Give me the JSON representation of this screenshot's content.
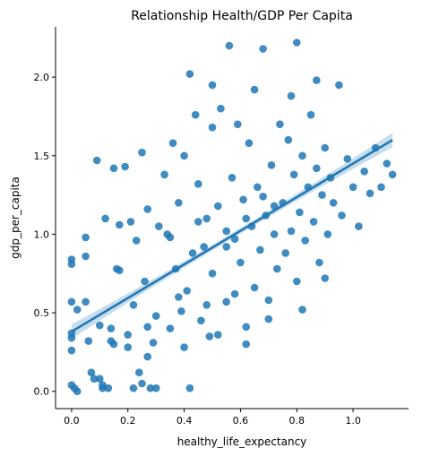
{
  "chart_data": {
    "type": "scatter",
    "title": "Relationship Health/GDP Per Capita",
    "xlabel": "healthy_life_expectancy",
    "ylabel": "gdp_per_capita",
    "xlim": [
      -0.057,
      1.197
    ],
    "ylim": [
      -0.11,
      2.32
    ],
    "x_ticks": [
      0.0,
      0.2,
      0.4,
      0.6,
      0.8,
      1.0
    ],
    "x_tick_labels": [
      "0.0",
      "0.2",
      "0.4",
      "0.6",
      "0.8",
      "1.0"
    ],
    "y_ticks": [
      0.0,
      0.5,
      1.0,
      1.5,
      2.0
    ],
    "y_tick_labels": [
      "0.0",
      "0.5",
      "1.0",
      "1.5",
      "2.0"
    ],
    "grid": false,
    "point_color": "#1f77b4",
    "regression": {
      "type": "linear",
      "intercept": 0.38,
      "slope": 1.07,
      "x_range": [
        0.0,
        1.14
      ],
      "ci_color": "#1f77b4"
    },
    "points": [
      [
        0.0,
        0.84
      ],
      [
        0.0,
        0.81
      ],
      [
        0.0,
        0.57
      ],
      [
        0.0,
        0.37
      ],
      [
        0.0,
        0.34
      ],
      [
        0.0,
        0.26
      ],
      [
        0.0,
        0.04
      ],
      [
        0.01,
        0.02
      ],
      [
        0.02,
        0.0
      ],
      [
        0.02,
        0.52
      ],
      [
        0.05,
        0.98
      ],
      [
        0.05,
        0.86
      ],
      [
        0.05,
        0.57
      ],
      [
        0.06,
        0.32
      ],
      [
        0.07,
        0.12
      ],
      [
        0.08,
        0.08
      ],
      [
        0.09,
        1.47
      ],
      [
        0.1,
        0.42
      ],
      [
        0.1,
        0.08
      ],
      [
        0.11,
        0.04
      ],
      [
        0.11,
        0.02
      ],
      [
        0.12,
        1.1
      ],
      [
        0.13,
        0.02
      ],
      [
        0.14,
        0.4
      ],
      [
        0.15,
        1.42
      ],
      [
        0.15,
        0.3
      ],
      [
        0.16,
        0.78
      ],
      [
        0.17,
        0.77
      ],
      [
        0.17,
        1.06
      ],
      [
        0.19,
        1.43
      ],
      [
        0.2,
        0.28
      ],
      [
        0.21,
        1.08
      ],
      [
        0.22,
        0.55
      ],
      [
        0.22,
        0.02
      ],
      [
        0.23,
        0.96
      ],
      [
        0.24,
        0.12
      ],
      [
        0.25,
        1.52
      ],
      [
        0.25,
        0.05
      ],
      [
        0.26,
        0.7
      ],
      [
        0.27,
        0.41
      ],
      [
        0.27,
        0.22
      ],
      [
        0.28,
        0.02
      ],
      [
        0.29,
        0.31
      ],
      [
        0.3,
        0.02
      ],
      [
        0.31,
        1.05
      ],
      [
        0.33,
        1.38
      ],
      [
        0.34,
        1.0
      ],
      [
        0.35,
        0.4
      ],
      [
        0.36,
        1.58
      ],
      [
        0.37,
        0.78
      ],
      [
        0.38,
        1.2
      ],
      [
        0.39,
        0.51
      ],
      [
        0.4,
        1.5
      ],
      [
        0.41,
        0.64
      ],
      [
        0.42,
        0.02
      ],
      [
        0.43,
        0.88
      ],
      [
        0.44,
        1.76
      ],
      [
        0.45,
        1.32
      ],
      [
        0.46,
        0.45
      ],
      [
        0.47,
        0.92
      ],
      [
        0.48,
        1.1
      ],
      [
        0.49,
        0.35
      ],
      [
        0.5,
        1.68
      ],
      [
        0.5,
        0.75
      ],
      [
        0.52,
        1.18
      ],
      [
        0.53,
        1.8
      ],
      [
        0.55,
        0.57
      ],
      [
        0.55,
        1.02
      ],
      [
        0.56,
        2.2
      ],
      [
        0.57,
        1.36
      ],
      [
        0.58,
        0.97
      ],
      [
        0.59,
        1.7
      ],
      [
        0.6,
        0.82
      ],
      [
        0.61,
        1.22
      ],
      [
        0.62,
        0.41
      ],
      [
        0.63,
        1.58
      ],
      [
        0.64,
        1.05
      ],
      [
        0.65,
        0.66
      ],
      [
        0.66,
        1.3
      ],
      [
        0.67,
        0.9
      ],
      [
        0.68,
        2.18
      ],
      [
        0.69,
        1.12
      ],
      [
        0.7,
        0.46
      ],
      [
        0.71,
        1.44
      ],
      [
        0.72,
        1.0
      ],
      [
        0.73,
        0.78
      ],
      [
        0.74,
        1.7
      ],
      [
        0.75,
        1.2
      ],
      [
        0.76,
        0.88
      ],
      [
        0.77,
        1.6
      ],
      [
        0.78,
        1.02
      ],
      [
        0.79,
        1.38
      ],
      [
        0.8,
        2.22
      ],
      [
        0.8,
        0.7
      ],
      [
        0.81,
        1.14
      ],
      [
        0.82,
        1.5
      ],
      [
        0.83,
        0.96
      ],
      [
        0.84,
        1.3
      ],
      [
        0.85,
        1.76
      ],
      [
        0.86,
        1.08
      ],
      [
        0.87,
        1.42
      ],
      [
        0.88,
        0.82
      ],
      [
        0.89,
        1.25
      ],
      [
        0.9,
        1.55
      ],
      [
        0.91,
        1.0
      ],
      [
        0.92,
        1.36
      ],
      [
        0.93,
        1.2
      ],
      [
        0.95,
        1.95
      ],
      [
        0.96,
        1.12
      ],
      [
        0.98,
        1.48
      ],
      [
        1.0,
        1.3
      ],
      [
        1.02,
        1.05
      ],
      [
        1.04,
        1.4
      ],
      [
        1.06,
        1.26
      ],
      [
        1.08,
        1.55
      ],
      [
        1.1,
        1.3
      ],
      [
        1.12,
        1.45
      ],
      [
        1.14,
        1.38
      ],
      [
        0.27,
        1.16
      ],
      [
        0.35,
        0.98
      ],
      [
        0.45,
        1.08
      ],
      [
        0.55,
        0.92
      ],
      [
        0.62,
        1.1
      ],
      [
        0.68,
        1.24
      ],
      [
        0.72,
        1.18
      ],
      [
        0.58,
        0.62
      ],
      [
        0.48,
        0.55
      ],
      [
        0.38,
        0.6
      ],
      [
        0.3,
        0.48
      ],
      [
        0.2,
        0.36
      ],
      [
        0.14,
        0.32
      ],
      [
        0.4,
        0.28
      ],
      [
        0.52,
        0.36
      ],
      [
        0.62,
        0.3
      ],
      [
        0.7,
        0.58
      ],
      [
        0.82,
        0.52
      ],
      [
        0.9,
        0.72
      ],
      [
        0.78,
        1.88
      ],
      [
        0.65,
        1.92
      ],
      [
        0.5,
        1.95
      ],
      [
        0.42,
        2.02
      ],
      [
        0.87,
        1.98
      ]
    ]
  }
}
